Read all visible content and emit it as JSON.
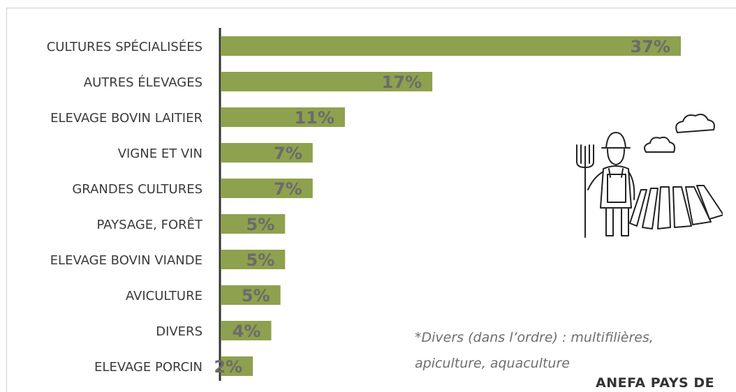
{
  "chart_data": {
    "type": "bar",
    "orientation": "horizontal",
    "categories": [
      "CULTURES SPÉCIALISÉES",
      "AUTRES ÉLEVAGES",
      "ELEVAGE BOVIN LAITIER",
      "VIGNE ET VIN",
      "GRANDES CULTURES",
      "PAYSAGE, FORÊT",
      "ELEVAGE BOVIN VIANDE",
      "AVICULTURE",
      "DIVERS",
      "ELEVAGE PORCIN"
    ],
    "values": [
      37,
      17,
      11,
      7,
      7,
      5,
      5,
      5,
      4,
      2
    ],
    "data_labels": [
      "37%",
      "17%",
      "11%",
      "7%",
      "7%",
      "5%",
      "5%",
      "5%",
      "4%",
      "2%"
    ],
    "bar_fill_fraction": [
      1.0,
      0.46,
      0.27,
      0.2,
      0.2,
      0.14,
      0.14,
      0.13,
      0.11,
      0.07
    ],
    "unit": "%",
    "title": "",
    "xlabel": "",
    "ylabel": "",
    "grid": false,
    "legend": "none",
    "bar_color": "#8ea14e",
    "label_color": "#6b6b6b",
    "category_color": "#3a3a3a"
  },
  "footnote": {
    "line1": "*Divers (dans l’ordre) : multifilières,",
    "line2": "apiculture, aquaculture"
  },
  "source": "ANEFA PAYS DE",
  "illustration": "farmer-with-pitchfork-field-clouds"
}
